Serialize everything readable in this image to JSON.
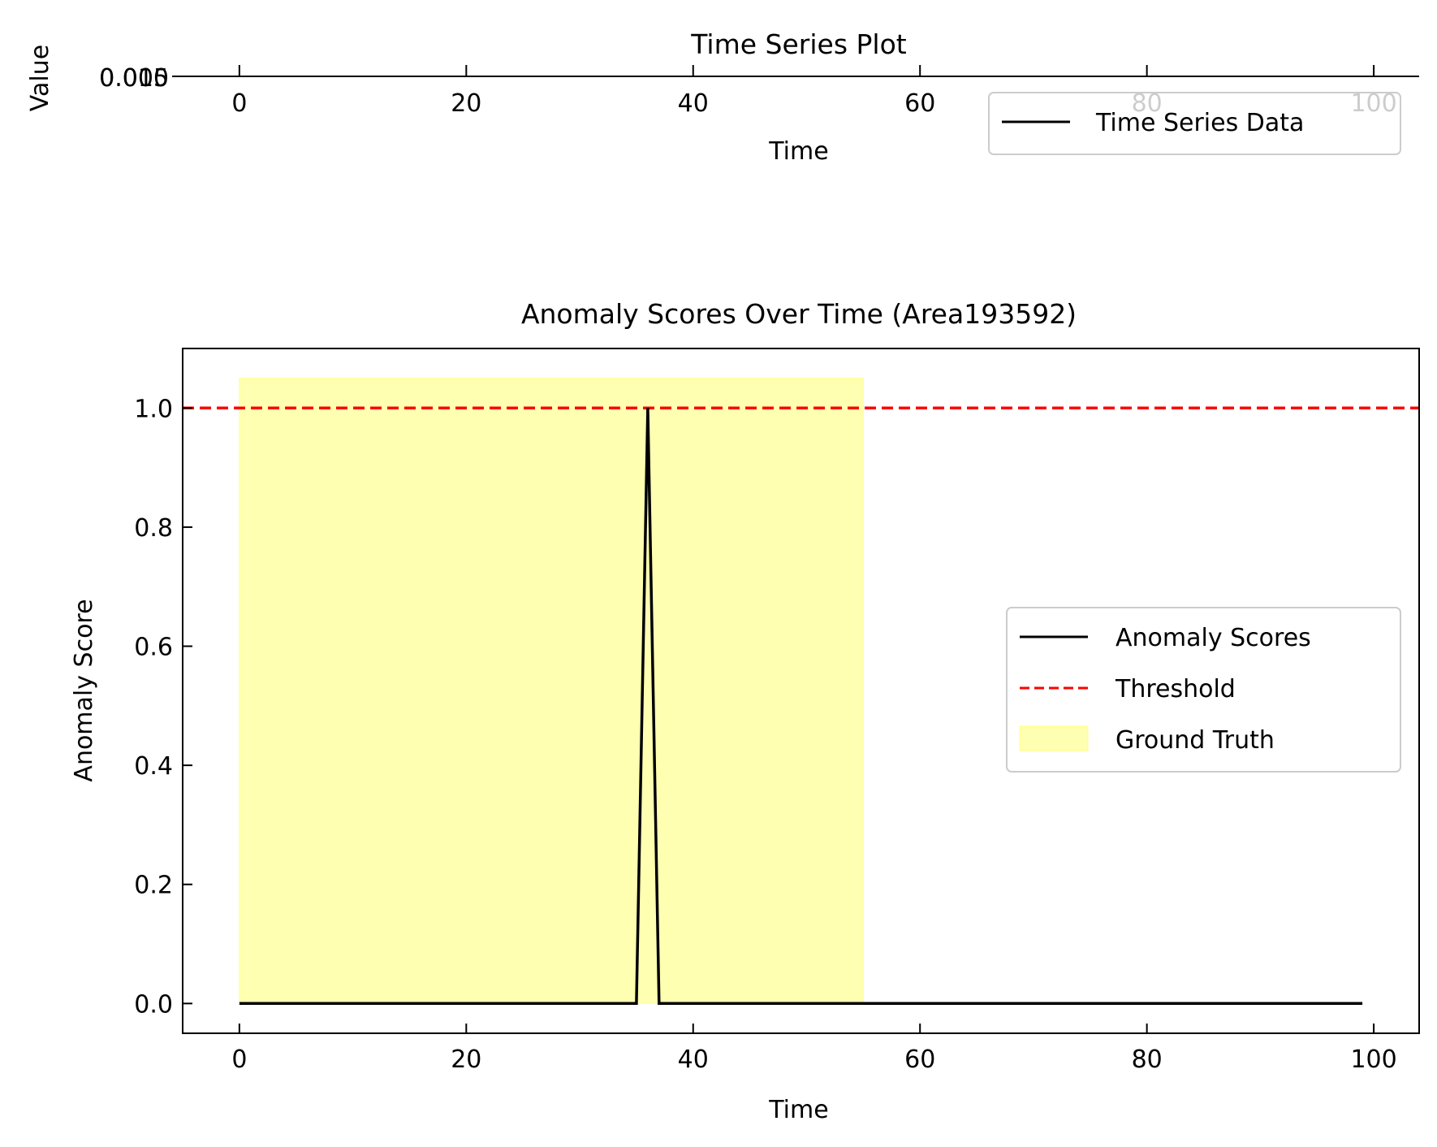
{
  "chart_data": [
    {
      "type": "line",
      "title": "Time Series Plot",
      "xlabel": "Time",
      "ylabel": "Value",
      "x_ticks": [
        "0",
        "20",
        "40",
        "60",
        "80",
        "100"
      ],
      "y_ticks": [
        "0.005",
        "0.010"
      ],
      "xlim": [
        -5,
        104
      ],
      "series": [
        {
          "name": "Time Series Data",
          "color": "#000000",
          "values": []
        }
      ],
      "legend_position": "top-right"
    },
    {
      "type": "line",
      "title": "Anomaly Scores Over Time (Area193592)",
      "xlabel": "Time",
      "ylabel": "Anomaly Score",
      "xlim": [
        -5,
        104
      ],
      "ylim": [
        -0.05,
        1.1
      ],
      "x_ticks": [
        "0",
        "20",
        "40",
        "60",
        "80",
        "100"
      ],
      "y_ticks": [
        "0.0",
        "0.2",
        "0.4",
        "0.6",
        "0.8",
        "1.0"
      ],
      "legend_position": "center-right",
      "series": [
        {
          "name": "Anomaly Scores",
          "color": "#000000",
          "x": [
            0,
            35,
            36,
            37,
            99
          ],
          "y": [
            0,
            0,
            1.0,
            0,
            0
          ]
        },
        {
          "name": "Threshold",
          "color": "#ff0000",
          "style": "dashed",
          "y_constant": 1.0
        },
        {
          "name": "Ground Truth",
          "color": "#ffff00",
          "type": "span",
          "x_start": 0,
          "x_end": 55,
          "y_top": 1.05
        }
      ]
    }
  ]
}
